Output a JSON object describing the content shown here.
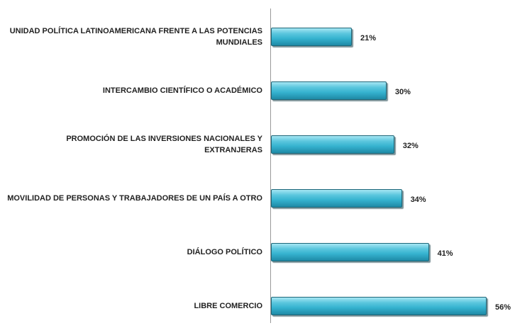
{
  "chart_data": {
    "type": "bar",
    "orientation": "horizontal",
    "categories": [
      "UNIDAD POLÍTICA LATINOAMERICANA FRENTE A LAS POTENCIAS MUNDIALES",
      "INTERCAMBIO CIENTÍFICO O ACADÉMICO",
      "PROMOCIÓN DE LAS INVERSIONES NACIONALES Y EXTRANJERAS",
      "MOVILIDAD DE PERSONAS Y TRABAJADORES DE UN PAÍS A OTRO",
      "DIÁLOGO POLÍTICO",
      "LIBRE COMERCIO"
    ],
    "values": [
      21,
      30,
      32,
      34,
      41,
      56
    ],
    "value_labels": [
      "21%",
      "30%",
      "32%",
      "34%",
      "41%",
      "56%"
    ],
    "color": "#35b2cf"
  }
}
